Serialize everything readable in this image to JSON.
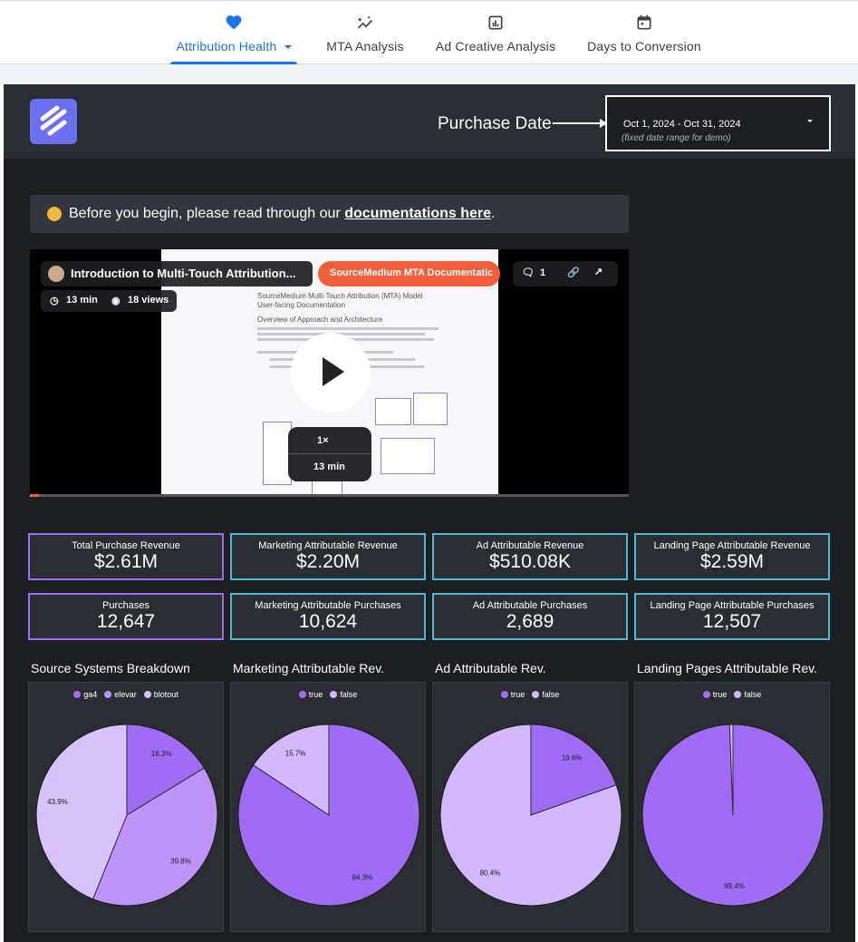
{
  "tabs": [
    {
      "label": "Attribution Health",
      "icon": "heart-icon",
      "active": true
    },
    {
      "label": "MTA Analysis",
      "icon": "sparkle-chart-icon",
      "active": false
    },
    {
      "label": "Ad Creative Analysis",
      "icon": "bar-chart-icon",
      "active": false
    },
    {
      "label": "Days to Conversion",
      "icon": "calendar-icon",
      "active": false
    }
  ],
  "header": {
    "date_label": "Purchase Date",
    "date_range": "Oct 1, 2024 - Oct 31, 2024",
    "date_note": "(fixed date range for demo)"
  },
  "notice": {
    "prefix": "Before you begin, please read through our ",
    "link": "documentations here",
    "suffix": "."
  },
  "video": {
    "title": "Introduction to Multi-Touch Attribution...",
    "duration": "13 min",
    "views": "18 views",
    "source_button": "SourceMedium MTA Documentatic",
    "comments": "1",
    "speed": "1×",
    "speed_duration": "13 min",
    "doc_title": "SourceMedium Multi-Touch Attribution (MTA) Model User-facing Documentation",
    "doc_heading": "Overview of Approach and Architecture"
  },
  "kpis": [
    {
      "label": "Total Purchase Revenue",
      "value": "$2.61M",
      "style": "purple"
    },
    {
      "label": "Marketing Attributable Revenue",
      "value": "$2.20M",
      "style": "cyan"
    },
    {
      "label": "Ad Attributable Revenue",
      "value": "$510.08K",
      "style": "cyan"
    },
    {
      "label": "Landing Page Attributable Revenue",
      "value": "$2.59M",
      "style": "cyan"
    },
    {
      "label": "Purchases",
      "value": "12,647",
      "style": "purple"
    },
    {
      "label": "Marketing Attributable Purchases",
      "value": "10,624",
      "style": "cyan"
    },
    {
      "label": "Ad Attributable Purchases",
      "value": "2,689",
      "style": "cyan"
    },
    {
      "label": "Landing Page Attributable Purchases",
      "value": "12,507",
      "style": "cyan"
    }
  ],
  "chart_data": [
    {
      "type": "pie",
      "title": "Source Systems Breakdown",
      "categories": [
        "ga4",
        "elevar",
        "blotout"
      ],
      "values": [
        16.3,
        39.8,
        43.9
      ],
      "colors": [
        "#a06cf5",
        "#be94fb",
        "#d7c2fc"
      ],
      "legend": "top"
    },
    {
      "type": "pie",
      "title": "Marketing Attributable Rev.",
      "categories": [
        "true",
        "false"
      ],
      "values": [
        84.3,
        15.7
      ],
      "colors": [
        "#a06cf5",
        "#d2b8fc"
      ],
      "legend": "top"
    },
    {
      "type": "pie",
      "title": "Ad Attributable Rev.",
      "categories": [
        "true",
        "false"
      ],
      "values": [
        19.6,
        80.4
      ],
      "colors": [
        "#a06cf5",
        "#d2b8fc"
      ],
      "legend": "top"
    },
    {
      "type": "pie",
      "title": "Landing Pages Attributable Rev.",
      "categories": [
        "true",
        "false"
      ],
      "values": [
        99.4,
        0.6
      ],
      "colors": [
        "#a06cf5",
        "#d2b8fc"
      ],
      "legend": "top"
    }
  ]
}
